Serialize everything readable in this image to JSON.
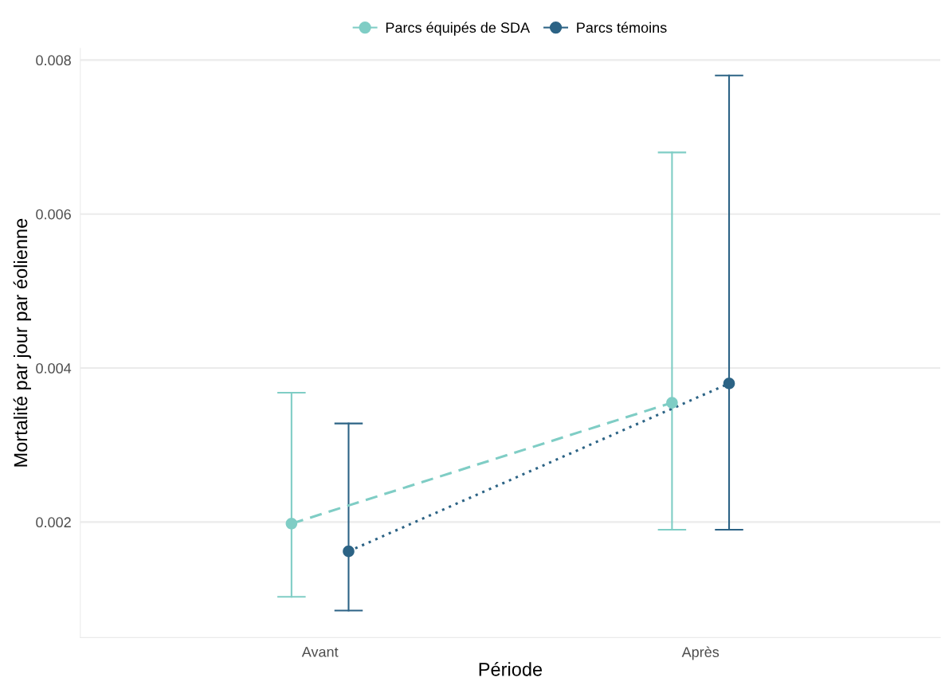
{
  "chart_data": {
    "type": "line",
    "xlabel": "Période",
    "ylabel": "Mortalité par jour par éolienne",
    "categories": [
      "Avant",
      "Après"
    ],
    "series": [
      {
        "name": "Parcs équipés de SDA",
        "color": "#7fcdc5",
        "line_style": "dashed",
        "values": [
          0.00198,
          0.00355
        ],
        "errors": [
          [
            0.00103,
            0.00368
          ],
          [
            0.0019,
            0.0068
          ]
        ]
      },
      {
        "name": "Parcs témoins",
        "color": "#2c6385",
        "line_style": "dotted",
        "values": [
          0.00162,
          0.0038
        ],
        "errors": [
          [
            0.00085,
            0.00328
          ],
          [
            0.0019,
            0.0078
          ]
        ]
      }
    ],
    "ylim": [
      0.0005,
      0.00815
    ],
    "yticks": [
      {
        "value": 0.002,
        "label": "0.002"
      },
      {
        "value": 0.004,
        "label": "0.004"
      },
      {
        "value": 0.006,
        "label": "0.006"
      },
      {
        "value": 0.008,
        "label": "0.008"
      }
    ],
    "grid": "y",
    "legend": "top",
    "marker": "circle"
  }
}
